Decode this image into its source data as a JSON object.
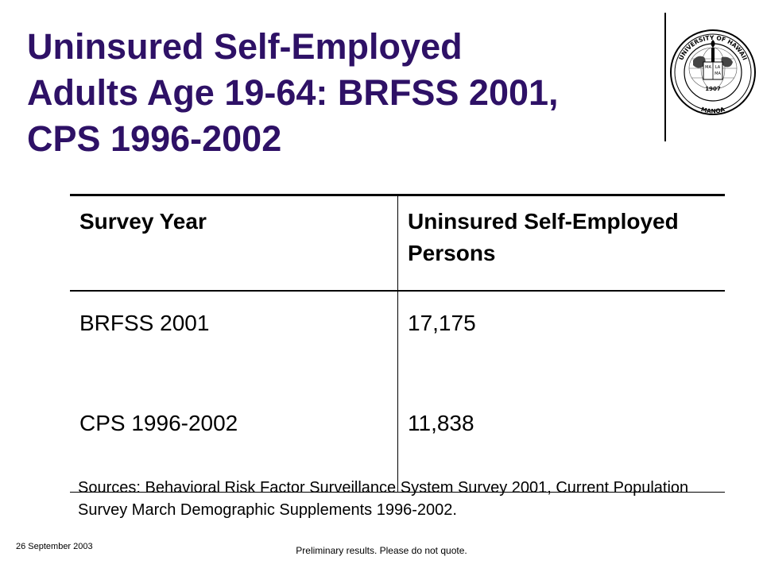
{
  "slide": {
    "title_lines": [
      "Uninsured Self-Employed",
      "Adults Age 19-64:  BRFSS 2001,",
      "CPS 1996-2002"
    ],
    "seal_text": {
      "top": "UNIVERSITY OF HAWAII",
      "bottom": "MANOA",
      "year": "1907",
      "book_text": [
        "MA",
        "LA",
        "MA"
      ]
    },
    "table": {
      "headers": [
        "Survey Year",
        "Uninsured Self-Employed Persons"
      ],
      "rows": [
        [
          "BRFSS 2001",
          "17,175"
        ],
        [
          "CPS 1996-2002",
          "11,838"
        ]
      ]
    },
    "sources": "Sources:  Behavioral Risk Factor Surveillance System Survey 2001, Current Population Survey March Demographic Supplements 1996-2002.",
    "date": "26 September 2003",
    "footer": "Preliminary results.  Please do not quote.",
    "colors": {
      "title": "#2e1166"
    }
  }
}
